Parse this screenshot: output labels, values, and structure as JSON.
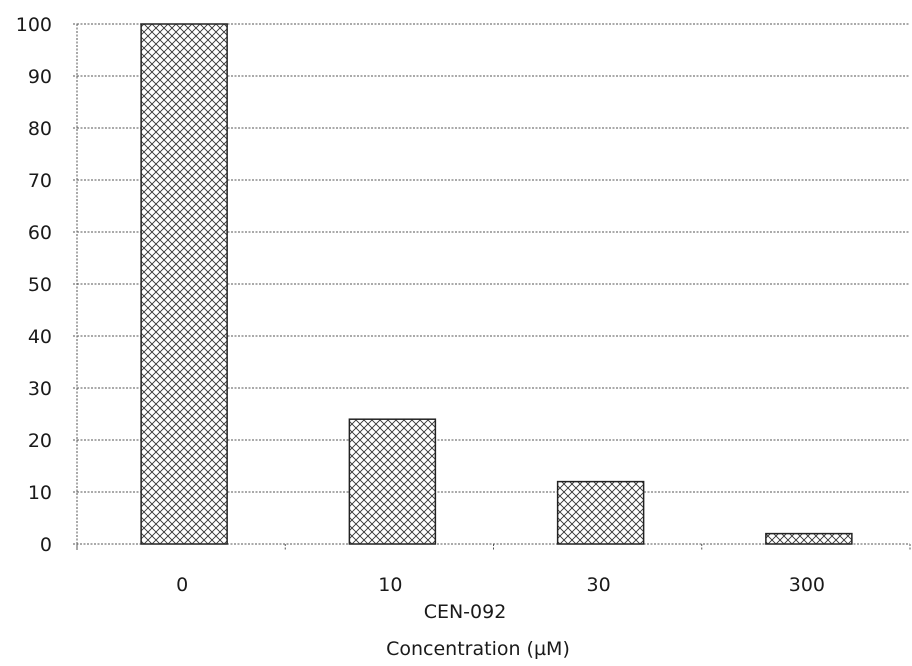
{
  "chart_data": {
    "type": "bar",
    "categories": [
      "0",
      "10",
      "30",
      "300"
    ],
    "values": [
      100,
      24,
      12,
      2
    ],
    "title": "",
    "xlabel_lines": [
      "CEN-092",
      "Concentration (µM)"
    ],
    "ylabel": "",
    "ylim": [
      0,
      100
    ],
    "yticks": [
      0,
      10,
      20,
      30,
      40,
      50,
      60,
      70,
      80,
      90,
      100
    ],
    "grid": true,
    "bar_fill": "crosshatch",
    "colors": {
      "bar_stroke": "#222222",
      "hatch": "#333333",
      "grid": "#555555"
    }
  }
}
